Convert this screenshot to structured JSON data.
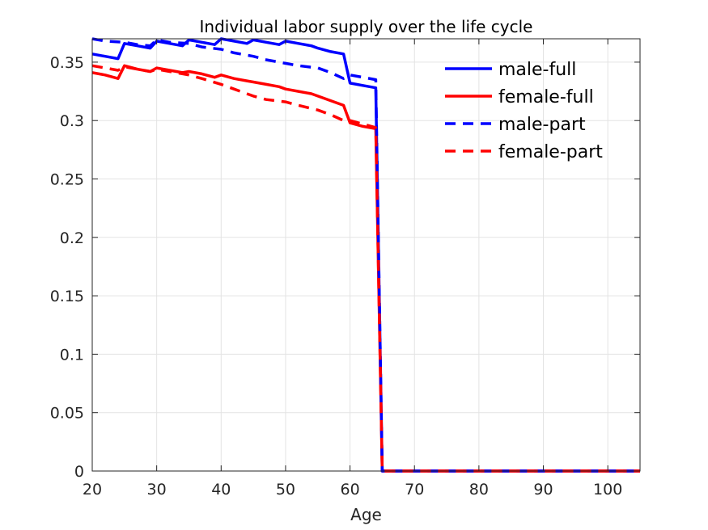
{
  "chart_data": {
    "type": "line",
    "title": "Individual labor supply over the life cycle",
    "xlabel": "Age",
    "ylabel": "",
    "xlim": [
      20,
      105
    ],
    "ylim": [
      0,
      0.37
    ],
    "xticks": [
      20,
      30,
      40,
      50,
      60,
      70,
      80,
      90,
      100
    ],
    "yticks": [
      0,
      0.05,
      0.1,
      0.15,
      0.2,
      0.25,
      0.3,
      0.35
    ],
    "xtick_labels": [
      "20",
      "30",
      "40",
      "50",
      "60",
      "70",
      "80",
      "90",
      "100"
    ],
    "ytick_labels": [
      "0",
      "0.05",
      "0.1",
      "0.15",
      "0.2",
      "0.25",
      "0.3",
      "0.35"
    ],
    "grid": true,
    "legend_position": "top-right",
    "series": [
      {
        "name": "male-full",
        "color": "#0000ff",
        "linestyle": "solid",
        "x": [
          20,
          22,
          24,
          25,
          27,
          29,
          30,
          32,
          34,
          35,
          37,
          39,
          40,
          42,
          44,
          45,
          47,
          49,
          50,
          52,
          54,
          55,
          57,
          59,
          60,
          62,
          64,
          65,
          66,
          70,
          80,
          90,
          100,
          105
        ],
        "y": [
          0.357,
          0.355,
          0.353,
          0.366,
          0.364,
          0.362,
          0.368,
          0.366,
          0.364,
          0.369,
          0.367,
          0.365,
          0.37,
          0.368,
          0.366,
          0.369,
          0.367,
          0.365,
          0.368,
          0.366,
          0.364,
          0.362,
          0.359,
          0.357,
          0.332,
          0.33,
          0.328,
          0,
          0,
          0,
          0,
          0,
          0,
          0
        ]
      },
      {
        "name": "female-full",
        "color": "#ff0000",
        "linestyle": "solid",
        "x": [
          20,
          22,
          24,
          25,
          27,
          29,
          30,
          32,
          34,
          35,
          37,
          39,
          40,
          42,
          44,
          45,
          47,
          49,
          50,
          52,
          54,
          55,
          57,
          59,
          60,
          62,
          64,
          65,
          66,
          70,
          80,
          90,
          100,
          105
        ],
        "y": [
          0.341,
          0.339,
          0.336,
          0.347,
          0.344,
          0.342,
          0.345,
          0.343,
          0.341,
          0.342,
          0.34,
          0.337,
          0.339,
          0.336,
          0.334,
          0.333,
          0.331,
          0.329,
          0.327,
          0.325,
          0.323,
          0.321,
          0.317,
          0.313,
          0.298,
          0.295,
          0.293,
          0,
          0,
          0,
          0,
          0,
          0,
          0
        ]
      },
      {
        "name": "male-part",
        "color": "#0000ff",
        "linestyle": "dashed",
        "x": [
          20,
          22,
          25,
          27,
          29,
          30,
          32,
          35,
          37,
          40,
          42,
          45,
          47,
          50,
          52,
          55,
          57,
          59,
          60,
          62,
          64,
          65,
          66,
          70,
          80,
          90,
          100,
          105
        ],
        "y": [
          0.37,
          0.368,
          0.367,
          0.365,
          0.364,
          0.369,
          0.367,
          0.366,
          0.363,
          0.361,
          0.358,
          0.355,
          0.352,
          0.349,
          0.347,
          0.345,
          0.341,
          0.336,
          0.339,
          0.337,
          0.335,
          0,
          0,
          0,
          0,
          0,
          0,
          0
        ]
      },
      {
        "name": "female-part",
        "color": "#ff0000",
        "linestyle": "dashed",
        "x": [
          20,
          22,
          24,
          25,
          27,
          29,
          30,
          32,
          35,
          37,
          40,
          42,
          45,
          47,
          50,
          52,
          55,
          57,
          59,
          60,
          62,
          64,
          65,
          66,
          70,
          80,
          90,
          100,
          105
        ],
        "y": [
          0.347,
          0.345,
          0.343,
          0.346,
          0.344,
          0.342,
          0.344,
          0.342,
          0.339,
          0.336,
          0.331,
          0.327,
          0.321,
          0.318,
          0.316,
          0.313,
          0.309,
          0.305,
          0.3,
          0.3,
          0.297,
          0.294,
          0,
          0,
          0,
          0,
          0,
          0,
          0
        ]
      }
    ]
  }
}
